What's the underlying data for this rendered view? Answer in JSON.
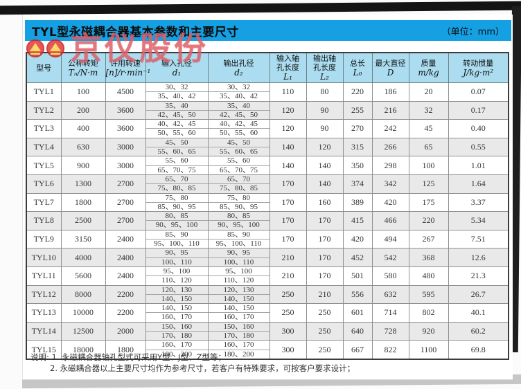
{
  "title": {
    "code": "TYL",
    "rest": "型永磁耦合器基本参数和主要尺寸",
    "unit_label": "（单位：mm）"
  },
  "watermark": {
    "company": "京仪股份",
    "logo": "double-red-circle-yellow-triangle-logo"
  },
  "colors": {
    "title_bar": "#14a0e2",
    "header_bg": "#abdcf0",
    "row_alt": "#e9e9e9",
    "watermark_pink": "#e9767e"
  },
  "table": {
    "headers": [
      {
        "lines": [
          "型号"
        ],
        "symbol": ""
      },
      {
        "lines": [
          "公称转矩"
        ],
        "symbol": "Tₙ/N·m"
      },
      {
        "lines": [
          "许用转速"
        ],
        "symbol": "[n]/r·min⁻¹"
      },
      {
        "lines": [
          "输入孔径"
        ],
        "symbol": "d₁"
      },
      {
        "lines": [
          "输出孔径"
        ],
        "symbol": "d₂"
      },
      {
        "lines": [
          "输入轴",
          "孔长度"
        ],
        "symbol": "L₁"
      },
      {
        "lines": [
          "输出轴",
          "孔长度"
        ],
        "symbol": "L₂"
      },
      {
        "lines": [
          "总长"
        ],
        "symbol": "L₀"
      },
      {
        "lines": [
          "最大直径"
        ],
        "symbol": "D"
      },
      {
        "lines": [
          "质量"
        ],
        "symbol": "m/kg"
      },
      {
        "lines": [
          "转动惯量"
        ],
        "symbol": "J/kg·m²"
      }
    ],
    "rows": [
      {
        "model": "TYL1",
        "torque": "100",
        "speed": "4500",
        "d1": [
          "30、32",
          "35、40、42"
        ],
        "d2": [
          "30、32",
          "35、40、42"
        ],
        "l1": "110",
        "l2": "80",
        "l0": "220",
        "diameter": "186",
        "mass": "20",
        "inertia": "0.07"
      },
      {
        "model": "TYL2",
        "torque": "200",
        "speed": "3600",
        "d1": [
          "35、40",
          "42、45、50"
        ],
        "d2": [
          "35、40",
          "42、45、50"
        ],
        "l1": "120",
        "l2": "90",
        "l0": "255",
        "diameter": "216",
        "mass": "32",
        "inertia": "0.17"
      },
      {
        "model": "TYL3",
        "torque": "400",
        "speed": "3600",
        "d1": [
          "40、42、45",
          "50、55、60"
        ],
        "d2": [
          "40、42、45",
          "50、55、60"
        ],
        "l1": "120",
        "l2": "90",
        "l0": "270",
        "diameter": "242",
        "mass": "45",
        "inertia": "0.40"
      },
      {
        "model": "TYL4",
        "torque": "630",
        "speed": "3000",
        "d1": [
          "45、50",
          "55、60、65"
        ],
        "d2": [
          "45、50",
          "55、60、65"
        ],
        "l1": "140",
        "l2": "120",
        "l0": "315",
        "diameter": "266",
        "mass": "65",
        "inertia": "0.55"
      },
      {
        "model": "TYL5",
        "torque": "900",
        "speed": "3000",
        "d1": [
          "55、60",
          "65、70、75"
        ],
        "d2": [
          "55、60",
          "65、70、75"
        ],
        "l1": "140",
        "l2": "140",
        "l0": "350",
        "diameter": "298",
        "mass": "100",
        "inertia": "1.01"
      },
      {
        "model": "TYL6",
        "torque": "1300",
        "speed": "2700",
        "d1": [
          "65、70",
          "75、80、85"
        ],
        "d2": [
          "65、70",
          "75、80、85"
        ],
        "l1": "170",
        "l2": "140",
        "l0": "374",
        "diameter": "342",
        "mass": "125",
        "inertia": "1.64"
      },
      {
        "model": "TYL7",
        "torque": "1800",
        "speed": "2700",
        "d1": [
          "75、80",
          "85、90、95"
        ],
        "d2": [
          "75、80",
          "85、90、95"
        ],
        "l1": "170",
        "l2": "160",
        "l0": "389",
        "diameter": "420",
        "mass": "175",
        "inertia": "3.37"
      },
      {
        "model": "TYL8",
        "torque": "2500",
        "speed": "2700",
        "d1": [
          "80、85",
          "90、95、100"
        ],
        "d2": [
          "80、85",
          "90、95、100"
        ],
        "l1": "170",
        "l2": "170",
        "l0": "415",
        "diameter": "466",
        "mass": "220",
        "inertia": "5.34"
      },
      {
        "model": "TYL9",
        "torque": "3150",
        "speed": "2400",
        "d1": [
          "85、90",
          "95、100、110"
        ],
        "d2": [
          "85、90",
          "95、100、110"
        ],
        "l1": "170",
        "l2": "170",
        "l0": "420",
        "diameter": "494",
        "mass": "267",
        "inertia": "7.51"
      },
      {
        "model": "TYL10",
        "torque": "4000",
        "speed": "2400",
        "d1": [
          "90、95",
          "100、110"
        ],
        "d2": [
          "90、95",
          "100、110"
        ],
        "l1": "210",
        "l2": "170",
        "l0": "452",
        "diameter": "542",
        "mass": "368",
        "inertia": "12.6"
      },
      {
        "model": "TYL11",
        "torque": "5600",
        "speed": "2400",
        "d1": [
          "95、100",
          "110、120"
        ],
        "d2": [
          "95、100",
          "110、120"
        ],
        "l1": "210",
        "l2": "170",
        "l0": "501",
        "diameter": "580",
        "mass": "480",
        "inertia": "21.3"
      },
      {
        "model": "TYL12",
        "torque": "8000",
        "speed": "2200",
        "d1": [
          "120、130",
          "140、150"
        ],
        "d2": [
          "120、130",
          "140、150"
        ],
        "l1": "250",
        "l2": "210",
        "l0": "556",
        "diameter": "632",
        "mass": "595",
        "inertia": "26.7"
      },
      {
        "model": "TYL13",
        "torque": "10000",
        "speed": "2200",
        "d1": [
          "140、150",
          "160、170"
        ],
        "d2": [
          "140、150",
          "160、170"
        ],
        "l1": "250",
        "l2": "250",
        "l0": "601",
        "diameter": "714",
        "mass": "802",
        "inertia": "40.1"
      },
      {
        "model": "TYL14",
        "torque": "12500",
        "speed": "2000",
        "d1": [
          "150、160",
          "170、180"
        ],
        "d2": [
          "150、160",
          "170、180"
        ],
        "l1": "300",
        "l2": "250",
        "l0": "640",
        "diameter": "728",
        "mass": "920",
        "inertia": "60.2"
      },
      {
        "model": "TYL15",
        "torque": "18000",
        "speed": "1800",
        "d1": [
          "160、170",
          "180、200"
        ],
        "d2": [
          "160、170",
          "180、200"
        ],
        "l1": "300",
        "l2": "250",
        "l0": "667",
        "diameter": "822",
        "mass": "1100",
        "inertia": "69.8"
      }
    ]
  },
  "notes": {
    "label": "说明:",
    "items": [
      "1. 永磁耦合器轴孔型式可采用Y型、J型、Z型等；",
      "2. 永磁耦合器以上主要尺寸均作为参考尺寸，若客户有特殊要求，可按客户要求设计；"
    ]
  }
}
